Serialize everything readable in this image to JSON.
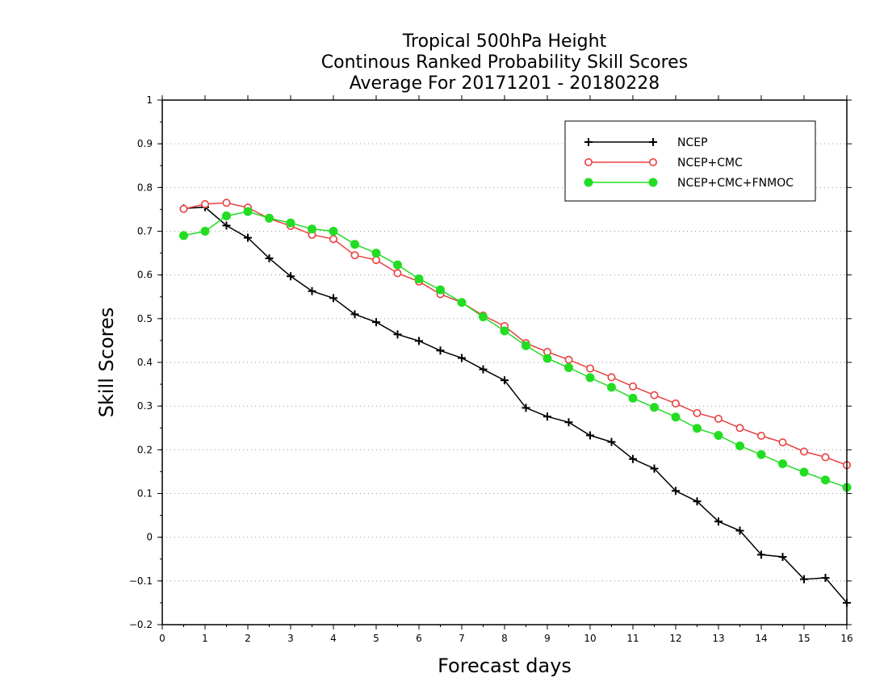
{
  "chart_data": {
    "type": "line",
    "title": [
      "Tropical 500hPa Height",
      "Continous Ranked Probability Skill Scores",
      "Average For 20171201 - 20180228"
    ],
    "xlabel": "Forecast days",
    "ylabel": "Skill Scores",
    "xlim": [
      0,
      16
    ],
    "ylim": [
      -0.2,
      1
    ],
    "xticks": [
      0,
      1,
      2,
      3,
      4,
      5,
      6,
      7,
      8,
      9,
      10,
      11,
      12,
      13,
      14,
      15,
      16
    ],
    "yticks": [
      -0.2,
      -0.1,
      0,
      0.1,
      0.2,
      0.3,
      0.4,
      0.5,
      0.6,
      0.7,
      0.8,
      0.9,
      1
    ],
    "ytick_labels": [
      "−0.2",
      "−0.1",
      "0",
      "0.1",
      "0.2",
      "0.3",
      "0.4",
      "0.5",
      "0.6",
      "0.7",
      "0.8",
      "0.9",
      "1"
    ],
    "grid": "horizontal-dotted",
    "legend_position": "top-right",
    "x": [
      0.5,
      1,
      1.5,
      2,
      2.5,
      3,
      3.5,
      4,
      4.5,
      5,
      5.5,
      6,
      6.5,
      7,
      7.5,
      8,
      8.5,
      9,
      9.5,
      10,
      10.5,
      11,
      11.5,
      12,
      12.5,
      13,
      13.5,
      14,
      14.5,
      15,
      15.5,
      16
    ],
    "series": [
      {
        "name": "NCEP",
        "color": "#000000",
        "marker": "plus",
        "values": [
          0.752,
          0.755,
          0.713,
          0.685,
          0.638,
          0.597,
          0.563,
          0.547,
          0.51,
          0.492,
          0.464,
          0.449,
          0.427,
          0.41,
          0.384,
          0.359,
          0.296,
          0.276,
          0.263,
          0.233,
          0.218,
          0.179,
          0.157,
          0.106,
          0.082,
          0.036,
          0.015,
          -0.04,
          -0.045,
          -0.096,
          -0.093,
          -0.15
        ]
      },
      {
        "name": "NCEP+CMC",
        "color": "#e84040",
        "marker": "open-circle",
        "values": [
          0.751,
          0.762,
          0.765,
          0.754,
          0.729,
          0.712,
          0.692,
          0.682,
          0.645,
          0.634,
          0.604,
          0.585,
          0.556,
          0.537,
          0.507,
          0.483,
          0.444,
          0.424,
          0.406,
          0.386,
          0.366,
          0.345,
          0.325,
          0.306,
          0.284,
          0.271,
          0.25,
          0.232,
          0.217,
          0.196,
          0.183,
          0.165
        ]
      },
      {
        "name": "NCEP+CMC+FNMOC",
        "color": "#22dd22",
        "marker": "filled-circle",
        "values": [
          0.69,
          0.7,
          0.735,
          0.745,
          0.73,
          0.719,
          0.705,
          0.7,
          0.67,
          0.65,
          0.623,
          0.591,
          0.566,
          0.537,
          0.504,
          0.472,
          0.438,
          0.409,
          0.388,
          0.365,
          0.343,
          0.318,
          0.297,
          0.275,
          0.249,
          0.233,
          0.209,
          0.189,
          0.168,
          0.149,
          0.131,
          0.114
        ]
      }
    ]
  }
}
